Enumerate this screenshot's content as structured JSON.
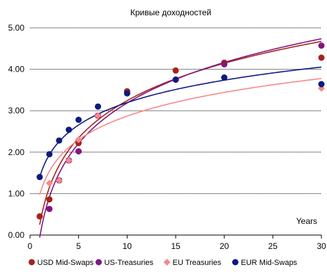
{
  "chart_data": {
    "type": "scatter",
    "title": "Кривые доходностей",
    "xlabel": "",
    "ylabel": "",
    "x_annotation": "Years",
    "xlim": [
      0,
      30
    ],
    "ylim": [
      0,
      5
    ],
    "xticks": [
      "0",
      "5",
      "10",
      "15",
      "20",
      "25",
      "30"
    ],
    "yticks": [
      "0.00",
      "1.00",
      "2.00",
      "3.00",
      "4.00",
      "5.00"
    ],
    "grid": "horizontal",
    "legend_position": "bottom",
    "trendline": "logarithmic",
    "series": [
      {
        "name": "USD Mid-Swaps",
        "color": "#a5231b",
        "marker": "circle",
        "points": [
          [
            1,
            0.45
          ],
          [
            2,
            0.86
          ],
          [
            3,
            1.32
          ],
          [
            4,
            1.8
          ],
          [
            5,
            2.22
          ],
          [
            7,
            2.88
          ],
          [
            10,
            3.47
          ],
          [
            15,
            3.97
          ],
          [
            20,
            4.16
          ],
          [
            30,
            4.28
          ]
        ],
        "trend": [
          0.25,
          1.3
        ]
      },
      {
        "name": "US-Treasuries",
        "color": "#801780",
        "marker": "circle",
        "points": [
          [
            2,
            0.63
          ],
          [
            3,
            1.32
          ],
          [
            4,
            1.8
          ],
          [
            5,
            2.02
          ],
          [
            7,
            2.88
          ],
          [
            10,
            3.42
          ],
          [
            15,
            3.75
          ],
          [
            20,
            4.12
          ],
          [
            30,
            4.57
          ]
        ],
        "trend": [
          -0.06,
          1.41
        ]
      },
      {
        "name": "EU Treasuries",
        "color": "#f4898c",
        "marker": "diamond",
        "points": [
          [
            2,
            1.25
          ],
          [
            3,
            1.32
          ],
          [
            4,
            1.8
          ],
          [
            5,
            2.3
          ],
          [
            7,
            2.88
          ],
          [
            10,
            3.42
          ],
          [
            15,
            3.75
          ],
          [
            20,
            3.8
          ],
          [
            30,
            3.54
          ]
        ],
        "trend": [
          0.97,
          0.825
        ]
      },
      {
        "name": "EUR Mid-Swaps",
        "color": "#0f1a80",
        "marker": "circle",
        "points": [
          [
            1,
            1.4
          ],
          [
            2,
            1.95
          ],
          [
            3,
            2.28
          ],
          [
            4,
            2.54
          ],
          [
            5,
            2.78
          ],
          [
            7,
            3.1
          ],
          [
            10,
            3.42
          ],
          [
            15,
            3.75
          ],
          [
            20,
            3.8
          ],
          [
            30,
            3.64
          ]
        ],
        "trend": [
          1.4,
          0.78
        ]
      }
    ]
  }
}
